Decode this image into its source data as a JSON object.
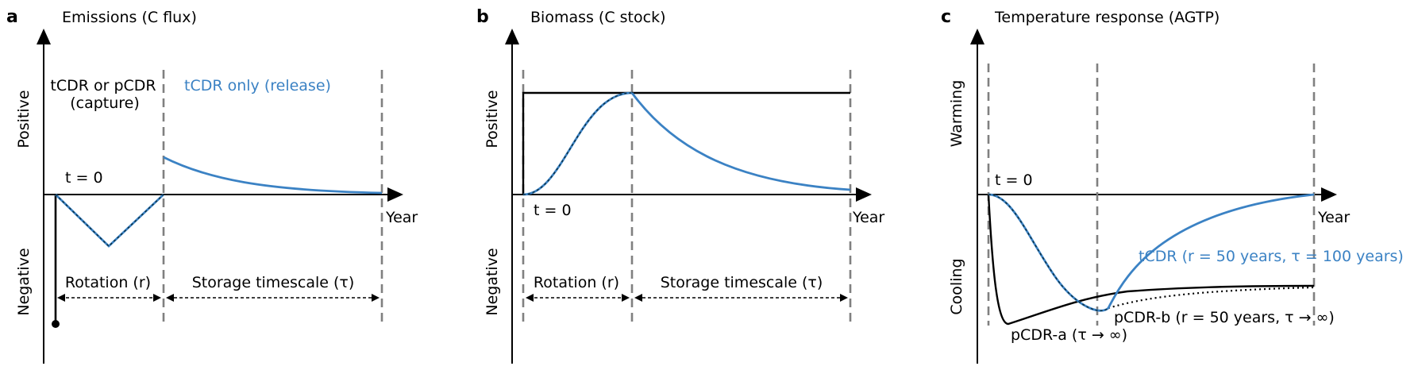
{
  "panels": [
    {
      "id": "a",
      "panel_label": "a",
      "title": "Emissions (C flux)",
      "y_positive": "Positive",
      "y_negative": "Negative",
      "x_axis": "Year",
      "t0": "t = 0",
      "capture_label_line1": "tCDR or pCDR",
      "capture_label_line2": "(capture)",
      "release_label": "tCDR only (release)",
      "rotation_label": "Rotation (r)",
      "storage_label": "Storage timescale (τ)"
    },
    {
      "id": "b",
      "panel_label": "b",
      "title": "Biomass (C stock)",
      "y_positive": "Positive",
      "y_negative": "Negative",
      "x_axis": "Year",
      "t0": "t = 0",
      "rotation_label": "Rotation (r)",
      "storage_label": "Storage timescale (τ)"
    },
    {
      "id": "c",
      "panel_label": "c",
      "title": "Temperature response (AGTP)",
      "y_positive": "Warming",
      "y_negative": "Cooling",
      "x_axis": "Year",
      "t0": "t = 0",
      "tcdr_label": "tCDR (r = 50 years, τ = 100 years)",
      "pcdra_label": "pCDR-a (τ → ∞)",
      "pcdrb_label": "pCDR-b (r = 50 years, τ → ∞)"
    }
  ],
  "colors": {
    "tcdr_blue": "#3b82c4",
    "boundary_gray": "#808080",
    "axis_black": "#000000"
  }
}
